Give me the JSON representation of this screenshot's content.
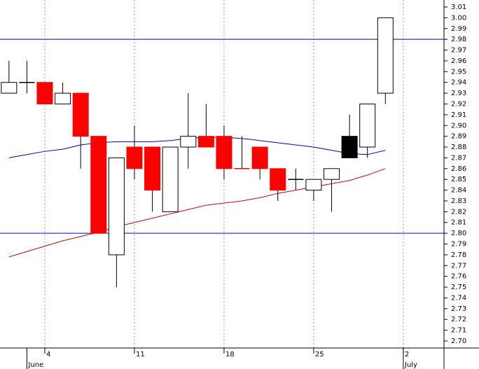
{
  "chart_data": {
    "type": "candlestick",
    "open": [
      2.93,
      2.94,
      2.94,
      2.92,
      2.93,
      2.89,
      2.78,
      2.88,
      2.88,
      2.82,
      2.88,
      2.89,
      2.89,
      2.86,
      2.88,
      2.86,
      2.85,
      2.84,
      2.85,
      2.89,
      2.88,
      2.93
    ],
    "high": [
      2.96,
      2.96,
      2.94,
      2.94,
      2.93,
      2.89,
      2.87,
      2.9,
      2.88,
      2.88,
      2.93,
      2.92,
      2.9,
      2.89,
      2.88,
      2.86,
      2.86,
      2.85,
      2.86,
      2.91,
      2.92,
      3.0
    ],
    "low": [
      2.93,
      2.93,
      2.92,
      2.92,
      2.86,
      2.8,
      2.75,
      2.85,
      2.82,
      2.82,
      2.86,
      2.88,
      2.85,
      2.86,
      2.85,
      2.83,
      2.84,
      2.83,
      2.82,
      2.87,
      2.87,
      2.92
    ],
    "close": [
      2.94,
      2.94,
      2.92,
      2.93,
      2.89,
      2.8,
      2.87,
      2.86,
      2.84,
      2.88,
      2.89,
      2.88,
      2.86,
      2.86,
      2.86,
      2.84,
      2.85,
      2.85,
      2.86,
      2.87,
      2.92,
      3.0
    ],
    "candle_colors": [
      "#ffffff",
      "#000000",
      "#ff0000",
      "#ffffff",
      "#ff0000",
      "#ff0000",
      "#ffffff",
      "#ff0000",
      "#ff0000",
      "#ffffff",
      "#ffffff",
      "#ff0000",
      "#ff0000",
      "#ff0000",
      "#ff0000",
      "#ff0000",
      "#000000",
      "#ffffff",
      "#ffffff",
      "#000000",
      "#ffffff",
      "#ffffff"
    ],
    "series": [
      {
        "color": "#0000cc",
        "values": [
          2.87,
          2.873,
          2.876,
          2.878,
          2.882,
          2.884,
          2.885,
          2.885,
          2.885,
          2.886,
          2.888,
          2.889,
          2.889,
          2.888,
          2.886,
          2.884,
          2.882,
          2.88,
          2.877,
          2.874,
          2.873,
          2.877
        ]
      },
      {
        "color": "#dd0000",
        "values": [
          2.778,
          2.783,
          2.788,
          2.793,
          2.797,
          2.801,
          2.806,
          2.81,
          2.814,
          2.818,
          2.822,
          2.826,
          2.828,
          2.83,
          2.833,
          2.837,
          2.84,
          2.843,
          2.846,
          2.849,
          2.854,
          2.86
        ]
      }
    ],
    "hlines": [
      2.98,
      2.8
    ],
    "hline_color": "#0000cc",
    "xlim": [
      -0.5,
      24.27
    ],
    "xticks": [
      {
        "value": 2,
        "label": "4"
      },
      {
        "value": 7,
        "label": "11"
      },
      {
        "value": 12,
        "label": "18"
      },
      {
        "value": 17,
        "label": "25"
      },
      {
        "value": 22,
        "label": "2"
      }
    ],
    "month_ticks": [
      {
        "value": 1,
        "label": "June"
      },
      {
        "value": 22,
        "label": "July"
      }
    ],
    "ylim": [
      2.6935,
      3.0165
    ],
    "yticks": [
      3.01,
      {
        "value": 3.0,
        "label": "3.00"
      },
      2.99,
      2.98,
      2.97,
      2.96,
      2.95,
      2.94,
      2.93,
      2.92,
      2.91,
      {
        "value": 2.9,
        "label": "2.90"
      },
      2.89,
      2.88,
      2.87,
      2.86,
      2.85,
      2.84,
      2.83,
      2.82,
      2.81,
      {
        "value": 2.8,
        "label": "2.80"
      },
      2.79,
      2.78,
      2.77,
      2.76,
      2.75,
      2.74,
      2.73,
      2.72,
      2.71,
      {
        "value": 2.7,
        "label": "2.70"
      }
    ],
    "grid": true
  }
}
